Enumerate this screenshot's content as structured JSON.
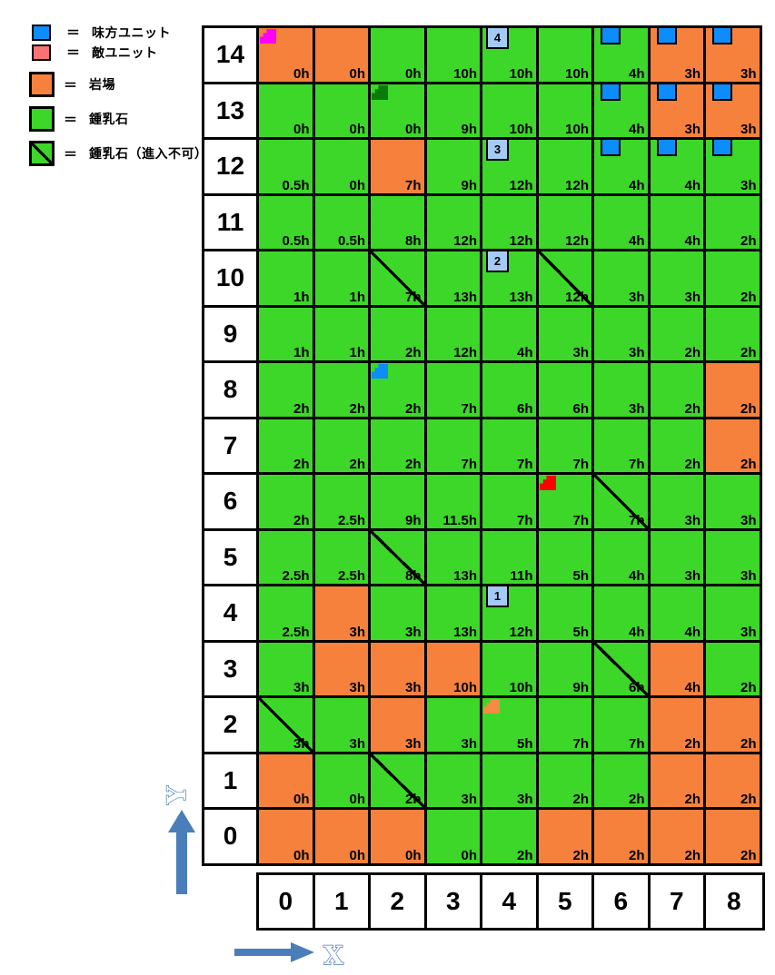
{
  "legend": {
    "equals": "＝",
    "items": [
      {
        "key": "ally",
        "label": "味方ユニット"
      },
      {
        "key": "enemy",
        "label": "敵ユニット"
      },
      {
        "key": "rock",
        "label": "岩場"
      },
      {
        "key": "stalactite",
        "label": "鍾乳石"
      },
      {
        "key": "stalactite_blocked",
        "label": "鍾乳石（進入不可）"
      }
    ]
  },
  "colors": {
    "ally": "#0D8CFC",
    "enemy": "#F97373",
    "rock": "#F5813D",
    "stalactite": "#3CD728",
    "waypoint_badge": "#A3CBF5",
    "grid_line": "#000000",
    "axis_arrow": "#4A7EBB",
    "markers": {
      "magenta": "#FF00FF",
      "dark_green": "#0A7C0A",
      "blue": "#0D8CFC",
      "red": "#FF0000",
      "orange": "#F78B42"
    }
  },
  "axes": {
    "x_label": "X",
    "y_label": "Y",
    "col_headers": [
      "0",
      "1",
      "2",
      "3",
      "4",
      "5",
      "6",
      "7",
      "8"
    ]
  },
  "map": {
    "terrain_types": {
      "rock": "岩場",
      "stal": "鍾乳石",
      "block": "鍾乳石（進入不可）"
    },
    "rows": [
      {
        "y": "14",
        "cells": [
          {
            "terrain": "rock",
            "time": "0h",
            "marker": "magenta"
          },
          {
            "terrain": "rock",
            "time": "0h"
          },
          {
            "terrain": "stal",
            "time": "0h"
          },
          {
            "terrain": "stal",
            "time": "10h"
          },
          {
            "terrain": "stal",
            "time": "10h",
            "wp": "4"
          },
          {
            "terrain": "stal",
            "time": "10h"
          },
          {
            "terrain": "stal",
            "time": "4h",
            "unit": "ally"
          },
          {
            "terrain": "rock",
            "time": "3h",
            "unit": "ally"
          },
          {
            "terrain": "rock",
            "time": "3h",
            "unit": "ally"
          }
        ]
      },
      {
        "y": "13",
        "cells": [
          {
            "terrain": "stal",
            "time": "0h"
          },
          {
            "terrain": "stal",
            "time": "0h"
          },
          {
            "terrain": "stal",
            "time": "0h",
            "marker": "dark_green"
          },
          {
            "terrain": "stal",
            "time": "9h"
          },
          {
            "terrain": "stal",
            "time": "10h"
          },
          {
            "terrain": "stal",
            "time": "10h"
          },
          {
            "terrain": "stal",
            "time": "4h",
            "unit": "ally"
          },
          {
            "terrain": "rock",
            "time": "3h",
            "unit": "ally"
          },
          {
            "terrain": "rock",
            "time": "3h",
            "unit": "ally"
          }
        ]
      },
      {
        "y": "12",
        "cells": [
          {
            "terrain": "stal",
            "time": "0.5h"
          },
          {
            "terrain": "stal",
            "time": "0h"
          },
          {
            "terrain": "rock",
            "time": "7h"
          },
          {
            "terrain": "stal",
            "time": "9h"
          },
          {
            "terrain": "stal",
            "time": "12h",
            "wp": "3"
          },
          {
            "terrain": "stal",
            "time": "12h"
          },
          {
            "terrain": "stal",
            "time": "4h",
            "unit": "ally"
          },
          {
            "terrain": "stal",
            "time": "4h",
            "unit": "ally"
          },
          {
            "terrain": "stal",
            "time": "3h",
            "unit": "ally"
          }
        ]
      },
      {
        "y": "11",
        "cells": [
          {
            "terrain": "stal",
            "time": "0.5h"
          },
          {
            "terrain": "stal",
            "time": "0.5h"
          },
          {
            "terrain": "stal",
            "time": "8h"
          },
          {
            "terrain": "stal",
            "time": "12h"
          },
          {
            "terrain": "stal",
            "time": "12h"
          },
          {
            "terrain": "stal",
            "time": "12h"
          },
          {
            "terrain": "stal",
            "time": "4h"
          },
          {
            "terrain": "stal",
            "time": "4h"
          },
          {
            "terrain": "stal",
            "time": "2h"
          }
        ]
      },
      {
        "y": "10",
        "cells": [
          {
            "terrain": "stal",
            "time": "1h"
          },
          {
            "terrain": "stal",
            "time": "1h"
          },
          {
            "terrain": "block",
            "time": "7h"
          },
          {
            "terrain": "stal",
            "time": "13h"
          },
          {
            "terrain": "stal",
            "time": "13h",
            "wp": "2"
          },
          {
            "terrain": "block",
            "time": "12h"
          },
          {
            "terrain": "stal",
            "time": "3h"
          },
          {
            "terrain": "stal",
            "time": "3h"
          },
          {
            "terrain": "stal",
            "time": "2h"
          }
        ]
      },
      {
        "y": "9",
        "cells": [
          {
            "terrain": "stal",
            "time": "1h"
          },
          {
            "terrain": "stal",
            "time": "1h"
          },
          {
            "terrain": "stal",
            "time": "2h"
          },
          {
            "terrain": "stal",
            "time": "12h"
          },
          {
            "terrain": "stal",
            "time": "4h"
          },
          {
            "terrain": "stal",
            "time": "3h"
          },
          {
            "terrain": "stal",
            "time": "3h"
          },
          {
            "terrain": "stal",
            "time": "2h"
          },
          {
            "terrain": "stal",
            "time": "2h"
          }
        ]
      },
      {
        "y": "8",
        "cells": [
          {
            "terrain": "stal",
            "time": "2h"
          },
          {
            "terrain": "stal",
            "time": "2h"
          },
          {
            "terrain": "stal",
            "time": "2h",
            "marker": "blue"
          },
          {
            "terrain": "stal",
            "time": "7h"
          },
          {
            "terrain": "stal",
            "time": "6h"
          },
          {
            "terrain": "stal",
            "time": "6h"
          },
          {
            "terrain": "stal",
            "time": "3h"
          },
          {
            "terrain": "stal",
            "time": "2h"
          },
          {
            "terrain": "rock",
            "time": "2h"
          }
        ]
      },
      {
        "y": "7",
        "cells": [
          {
            "terrain": "stal",
            "time": "2h"
          },
          {
            "terrain": "stal",
            "time": "2h"
          },
          {
            "terrain": "stal",
            "time": "2h"
          },
          {
            "terrain": "stal",
            "time": "7h"
          },
          {
            "terrain": "stal",
            "time": "7h"
          },
          {
            "terrain": "stal",
            "time": "7h"
          },
          {
            "terrain": "stal",
            "time": "7h"
          },
          {
            "terrain": "stal",
            "time": "2h"
          },
          {
            "terrain": "rock",
            "time": "2h"
          }
        ]
      },
      {
        "y": "6",
        "cells": [
          {
            "terrain": "stal",
            "time": "2h"
          },
          {
            "terrain": "stal",
            "time": "2.5h"
          },
          {
            "terrain": "stal",
            "time": "9h"
          },
          {
            "terrain": "stal",
            "time": "11.5h"
          },
          {
            "terrain": "stal",
            "time": "7h"
          },
          {
            "terrain": "stal",
            "time": "7h",
            "marker": "red"
          },
          {
            "terrain": "block",
            "time": "7h"
          },
          {
            "terrain": "stal",
            "time": "3h"
          },
          {
            "terrain": "stal",
            "time": "3h"
          }
        ]
      },
      {
        "y": "5",
        "cells": [
          {
            "terrain": "stal",
            "time": "2.5h"
          },
          {
            "terrain": "stal",
            "time": "2.5h"
          },
          {
            "terrain": "block",
            "time": "8h"
          },
          {
            "terrain": "stal",
            "time": "13h"
          },
          {
            "terrain": "stal",
            "time": "11h"
          },
          {
            "terrain": "stal",
            "time": "5h"
          },
          {
            "terrain": "stal",
            "time": "4h"
          },
          {
            "terrain": "stal",
            "time": "3h"
          },
          {
            "terrain": "stal",
            "time": "3h"
          }
        ]
      },
      {
        "y": "4",
        "cells": [
          {
            "terrain": "stal",
            "time": "2.5h"
          },
          {
            "terrain": "rock",
            "time": "3h"
          },
          {
            "terrain": "stal",
            "time": "3h"
          },
          {
            "terrain": "stal",
            "time": "13h"
          },
          {
            "terrain": "stal",
            "time": "12h",
            "wp": "1"
          },
          {
            "terrain": "stal",
            "time": "5h"
          },
          {
            "terrain": "stal",
            "time": "4h"
          },
          {
            "terrain": "stal",
            "time": "4h"
          },
          {
            "terrain": "stal",
            "time": "3h"
          }
        ]
      },
      {
        "y": "3",
        "cells": [
          {
            "terrain": "stal",
            "time": "3h"
          },
          {
            "terrain": "rock",
            "time": "3h"
          },
          {
            "terrain": "rock",
            "time": "3h"
          },
          {
            "terrain": "rock",
            "time": "10h"
          },
          {
            "terrain": "stal",
            "time": "10h"
          },
          {
            "terrain": "stal",
            "time": "9h"
          },
          {
            "terrain": "block",
            "time": "6h"
          },
          {
            "terrain": "rock",
            "time": "4h"
          },
          {
            "terrain": "stal",
            "time": "2h"
          }
        ]
      },
      {
        "y": "2",
        "cells": [
          {
            "terrain": "block",
            "time": "3h"
          },
          {
            "terrain": "stal",
            "time": "3h"
          },
          {
            "terrain": "rock",
            "time": "3h"
          },
          {
            "terrain": "stal",
            "time": "3h"
          },
          {
            "terrain": "stal",
            "time": "5h",
            "marker": "orange"
          },
          {
            "terrain": "stal",
            "time": "7h"
          },
          {
            "terrain": "stal",
            "time": "7h"
          },
          {
            "terrain": "rock",
            "time": "2h"
          },
          {
            "terrain": "rock",
            "time": "2h"
          }
        ]
      },
      {
        "y": "1",
        "cells": [
          {
            "terrain": "rock",
            "time": "0h"
          },
          {
            "terrain": "stal",
            "time": "0h"
          },
          {
            "terrain": "block",
            "time": "2h"
          },
          {
            "terrain": "stal",
            "time": "3h"
          },
          {
            "terrain": "stal",
            "time": "3h"
          },
          {
            "terrain": "stal",
            "time": "2h"
          },
          {
            "terrain": "stal",
            "time": "2h"
          },
          {
            "terrain": "rock",
            "time": "2h"
          },
          {
            "terrain": "rock",
            "time": "2h"
          }
        ]
      },
      {
        "y": "0",
        "cells": [
          {
            "terrain": "rock",
            "time": "0h"
          },
          {
            "terrain": "rock",
            "time": "0h"
          },
          {
            "terrain": "rock",
            "time": "0h"
          },
          {
            "terrain": "stal",
            "time": "0h"
          },
          {
            "terrain": "stal",
            "time": "2h"
          },
          {
            "terrain": "rock",
            "time": "2h"
          },
          {
            "terrain": "rock",
            "time": "2h"
          },
          {
            "terrain": "rock",
            "time": "2h"
          },
          {
            "terrain": "rock",
            "time": "2h"
          }
        ]
      }
    ]
  }
}
